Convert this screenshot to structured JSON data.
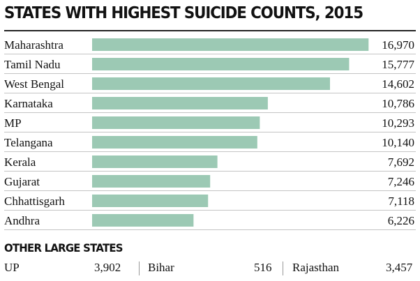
{
  "title": "STATES WITH HIGHEST SUICIDE COUNTS, 2015",
  "chart_data": {
    "type": "bar",
    "orientation": "horizontal",
    "title": "STATES WITH HIGHEST SUICIDE COUNTS, 2015",
    "categories": [
      "Maharashtra",
      "Tamil Nadu",
      "West Bengal",
      "Karnataka",
      "MP",
      "Telangana",
      "Kerala",
      "Gujarat",
      "Chhattisgarh",
      "Andhra"
    ],
    "values": [
      16970,
      15777,
      14602,
      10786,
      10293,
      10140,
      7692,
      7246,
      7118,
      6226
    ],
    "value_labels": [
      "16,970",
      "15,777",
      "14,602",
      "10,786",
      "10,293",
      "10,140",
      "7,692",
      "7,246",
      "7,118",
      "6,226"
    ],
    "xlim": [
      0,
      17300
    ],
    "bar_color": "#9cc9b4",
    "grid": false,
    "legend": "none"
  },
  "other": {
    "heading": "OTHER LARGE STATES",
    "items": [
      {
        "state": "UP",
        "value": "3,902"
      },
      {
        "state": "Bihar",
        "value": "516"
      },
      {
        "state": "Rajasthan",
        "value": "3,457"
      }
    ]
  }
}
